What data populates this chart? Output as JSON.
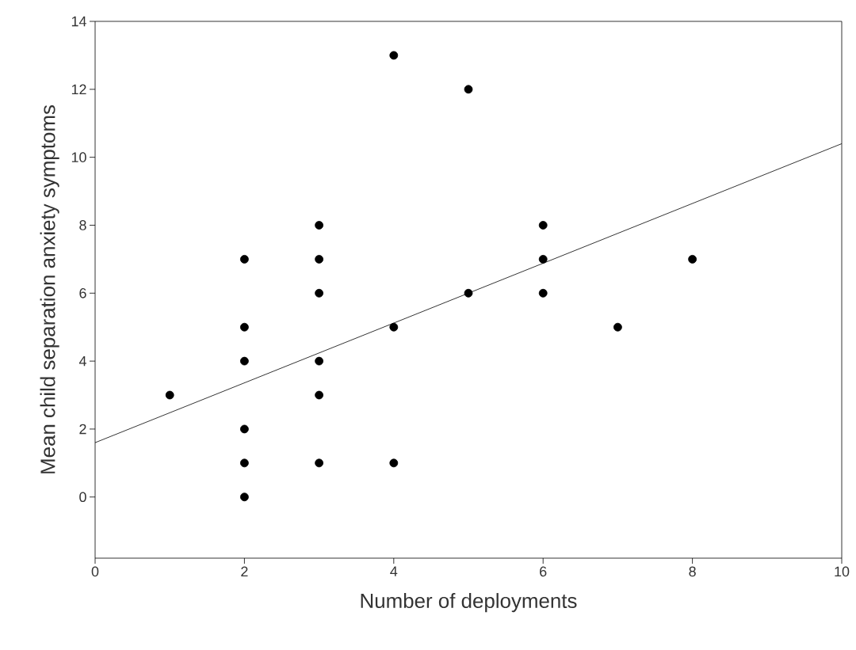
{
  "chart_data": {
    "type": "scatter",
    "xlabel": "Number of deployments",
    "ylabel": "Mean child separation anxiety symptoms",
    "xlim": [
      0,
      10
    ],
    "ylim": [
      -1.8,
      14
    ],
    "xticks": [
      0,
      2,
      4,
      6,
      8,
      10
    ],
    "yticks": [
      0,
      2,
      4,
      6,
      8,
      10,
      12,
      14
    ],
    "series": [
      {
        "color": "#000000",
        "marker": "circle",
        "x": [
          1,
          2,
          2,
          2,
          2,
          2,
          2,
          3,
          3,
          3,
          3,
          3,
          3,
          4,
          4,
          4,
          5,
          5,
          6,
          6,
          6,
          7,
          8
        ],
        "values": [
          3,
          7,
          5,
          4,
          2,
          1,
          0,
          8,
          7,
          6,
          4,
          3,
          1,
          13,
          5,
          1,
          12,
          6,
          8,
          7,
          6,
          5,
          7
        ]
      },
      {
        "type": "line",
        "color": "#000000",
        "marker": "none",
        "line_style": "solid",
        "x": [
          0,
          10
        ],
        "values": [
          1.6,
          10.4
        ]
      }
    ]
  }
}
